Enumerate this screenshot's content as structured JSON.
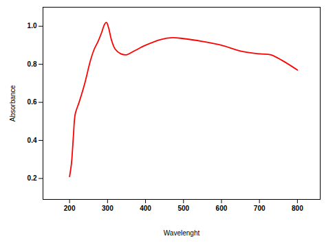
{
  "chart_data": {
    "type": "line",
    "x_label": "Wavelenght",
    "y_label": "Absorbance",
    "x": [
      200,
      205,
      210,
      215,
      225,
      240,
      255,
      265,
      275,
      285,
      292,
      297,
      303,
      310,
      320,
      335,
      350,
      370,
      400,
      440,
      470,
      500,
      550,
      600,
      650,
      700,
      730,
      760,
      800
    ],
    "values": [
      0.21,
      0.28,
      0.42,
      0.54,
      0.6,
      0.7,
      0.82,
      0.88,
      0.92,
      0.97,
      1.01,
      1.02,
      0.99,
      0.93,
      0.88,
      0.855,
      0.85,
      0.87,
      0.9,
      0.93,
      0.94,
      0.935,
      0.92,
      0.9,
      0.87,
      0.855,
      0.85,
      0.82,
      0.77
    ],
    "color": "#ff0000",
    "xlim": [
      130,
      860
    ],
    "xticks": [
      200,
      300,
      400,
      500,
      600,
      700,
      800
    ],
    "ylim": [
      0.09,
      1.1
    ],
    "yticks": [
      {
        "value": 0.2,
        "label": "0.2"
      },
      {
        "value": 0.4,
        "label": "0.4"
      },
      {
        "value": 0.6,
        "label": "0.6"
      },
      {
        "value": 0.8,
        "label": "0.8"
      },
      {
        "value": 1.0,
        "label": "1.0"
      }
    ],
    "grid": false
  }
}
